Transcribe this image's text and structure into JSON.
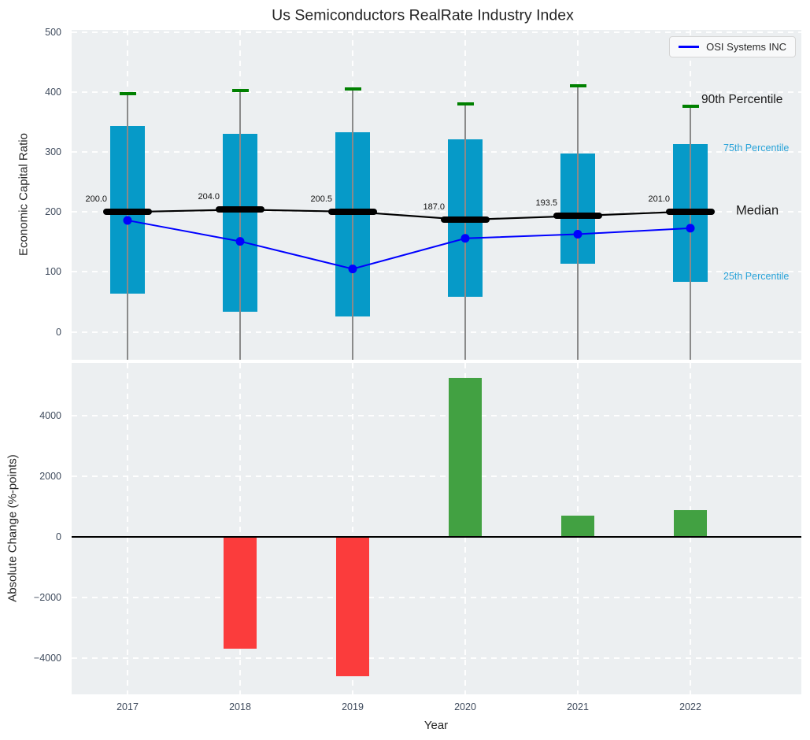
{
  "title": "Us Semiconductors RealRate Industry Index",
  "legend_label": "OSI Systems INC",
  "annotations": {
    "p90": "90th Percentile",
    "p75": "75th Percentile",
    "median": "Median",
    "p25": "25th Percentile"
  },
  "colors": {
    "box": "#069ac8",
    "cap_green": "#008000",
    "whisker_gray": "#8a8a8a",
    "median_black": "#000000",
    "osi_line_blue": "#0000ff",
    "bar_positive_green": "#42a142",
    "bar_negative_red": "#fb3c3c",
    "plot_background": "#eceff1",
    "percentile_label_cyan": "#29a3d9"
  },
  "chart_data": [
    {
      "type": "box",
      "title": "Us Semiconductors RealRate Industry Index",
      "ylabel": "Economic Capital Ratio",
      "categories": [
        "2017",
        "2018",
        "2019",
        "2020",
        "2021",
        "2022"
      ],
      "yticks": [
        0,
        100,
        200,
        300,
        400,
        500
      ],
      "ytick_labels": [
        "0",
        "100",
        "200",
        "300",
        "400",
        "500"
      ],
      "ylim": [
        -47,
        504
      ],
      "grid": true,
      "legend_position": "upper right",
      "series": [
        {
          "name": "90th Percentile",
          "values": [
            397,
            403,
            405,
            380,
            411,
            377
          ]
        },
        {
          "name": "75th Percentile",
          "values": [
            343,
            331,
            333,
            321,
            298,
            313
          ]
        },
        {
          "name": "Median",
          "values": [
            200.0,
            204.0,
            200.5,
            187.0,
            193.5,
            201.0
          ]
        },
        {
          "name": "25th Percentile",
          "values": [
            64,
            34,
            25,
            58,
            114,
            83
          ]
        },
        {
          "name": "OSI Systems INC",
          "values": [
            186,
            151,
            105,
            156,
            163,
            173
          ]
        }
      ],
      "median_labels": [
        "200.0",
        "204.0",
        "200.5",
        "187.0",
        "193.5",
        "201.0"
      ],
      "whiskers_extend_below_axis": true
    },
    {
      "type": "bar",
      "ylabel": "Absolute Change (%-points)",
      "xlabel": "Year",
      "categories": [
        "2017",
        "2018",
        "2019",
        "2020",
        "2021",
        "2022"
      ],
      "values": [
        null,
        -3700,
        -4600,
        5250,
        690,
        880
      ],
      "yticks": [
        -4000,
        -2000,
        0,
        2000,
        4000
      ],
      "ytick_labels": [
        "−4000",
        "−2000",
        "0",
        "2000",
        "4000"
      ],
      "ylim": [
        -5200,
        5730
      ],
      "grid": true
    }
  ]
}
